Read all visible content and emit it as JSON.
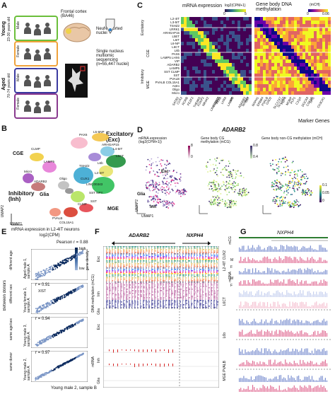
{
  "panelA": {
    "label": "A",
    "young": "Young",
    "young_age": "23-30 years old",
    "aged": "Aged",
    "aged_age": "70-74 years old",
    "male": "Male",
    "female": "Female",
    "source": "Frontal cortex (BA46)",
    "sort": "NeuN+ sorted nuclei",
    "seq": "Single nucleus multiomic sequencing (n=55,447 nuclei)"
  },
  "panelB": {
    "label": "B",
    "excitatory": "Excitatory (Exc)",
    "inhibitory": "Inhibitory (Inh)",
    "cge": "CGE",
    "mge": "MGE",
    "glia": "Glia",
    "umap1": "UMAP1",
    "umap2": "UMAP2",
    "clusters": [
      "PAX6",
      "L5-6NP",
      "L6CT",
      "L4-5IT",
      "L5ET",
      "L6b",
      "L4-5IT",
      "ARHGAP15",
      "TSHZ2",
      "L2-4IT",
      "L6IT",
      "CUX1",
      "LINC00343",
      "LRRK1",
      "SST NPY",
      "SST",
      "CLMP",
      "LAMP5",
      "VIP",
      "ADARB2",
      "LHX6",
      "PVALB",
      "COL15A1",
      "Astro",
      "Oligo",
      "Micro",
      "LAMP5"
    ]
  },
  "panelC": {
    "label": "C",
    "title_rna": "mRNA expression",
    "scale_rna": "log2(CPM+1)",
    "scale_rna_min": "0",
    "scale_rna_max": "5",
    "title_meth": "Gene body DNA methylation",
    "scale_meth": "(mCH)",
    "scale_meth_min": "0",
    "scale_meth_max": "0.06",
    "groups": [
      "L4-5IT",
      "L6IT",
      "Excitatory",
      "Inhibitory",
      "CGE",
      "MGE"
    ],
    "rows": [
      "L2-4IT",
      "L3-5IT",
      "TSHZ2",
      "LRRK1",
      "ARHGAP15",
      "L5ET",
      "L6IT",
      "L6-NP",
      "L6CT",
      "L6b",
      "PAX6",
      "LAMP5 LHX6",
      "VIP",
      "ADARB2",
      "LAMP5",
      "SST CLMP",
      "SST",
      "PVALB",
      "PVALB COL15A1",
      "Astro",
      "Oligo",
      "Micro"
    ],
    "genes": [
      "SATB2",
      "CUX2",
      "RORB",
      "FEZF2",
      "THEMIS",
      "FOXP2",
      "NR4A2",
      "LINC00343",
      "ROBO3",
      "PAX6",
      "LHX6",
      "LAMP5",
      "VIP",
      "ADARB2",
      "NXPH4",
      "SST",
      "NXPH1",
      "ERBB4",
      "PVALB",
      "GAD2",
      "SLC17A7",
      "SLC1A3",
      "AQP4",
      "MOBP",
      "PLP1",
      "C1QA",
      "DOCK8",
      "CSF1R",
      "SPI1",
      "CX3CR1"
    ],
    "marker_genes": "Marker Genes"
  },
  "panelD": {
    "label": "D",
    "gene": "ADARB2",
    "t1": "mRNA expression (log2(CPM+1))",
    "t2": "Gene body CG methylation (mCG)",
    "t3": "Gene body non-CG methylation (mCH)",
    "s1_max": "8",
    "s1_min": "0",
    "s2_max": "0.8",
    "s2_min": "0.4",
    "s3_max": "0.1",
    "s3_mid": "0.05",
    "s3_min": "0",
    "exc": "Exc",
    "inh": "Inh",
    "glia": "Glia",
    "umap1": "UMAP1",
    "umap2": "UMAP2"
  },
  "panelE": {
    "label": "E",
    "title": "mRNA expression in L2-4IT neurons",
    "subtitle": "log2(CPM)",
    "pearson": "Pearson r = 0.88",
    "density_high": "high",
    "density_low": "low",
    "density_label": "gene density",
    "rows": [
      {
        "r": "",
        "ylabel": "Aged male 1, sample A",
        "side": "different age",
        "gene": ""
      },
      {
        "r": "r = 0.91",
        "ylabel": "Young female 1, sample A",
        "side": "different sex",
        "gene": "XIST"
      },
      {
        "r": "r = 0.94",
        "ylabel": "Young male 3, sample A",
        "side": "same age/sex",
        "gene": ""
      },
      {
        "r": "r = 0.97",
        "ylabel": "Young male 2, sample A",
        "side": "same donor",
        "gene": ""
      }
    ],
    "between": "Between donors",
    "xlabel": "Young male 2, sample B"
  },
  "panelF": {
    "label": "F",
    "gene1": "ADARB2",
    "gene2": "NXPH4",
    "dna": "DNA methylation (mCG)",
    "mrna": "mRNA",
    "exc": "Exc",
    "inh": "Inh",
    "glia": "Glia"
  },
  "panelG": {
    "label": "G",
    "gene": "NXPH4",
    "rows": [
      "L2-4IT CUX2",
      "L6CT",
      "L6b",
      "MGE PVALB"
    ],
    "m": "M",
    "f": "F",
    "mcg": "mCG",
    "mrna": "mRNA"
  }
}
